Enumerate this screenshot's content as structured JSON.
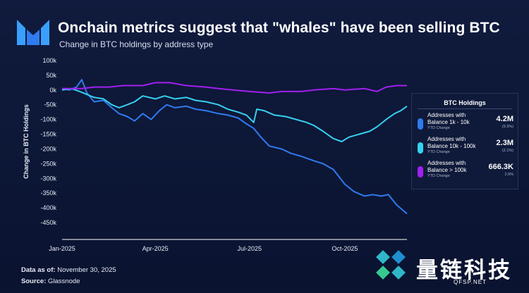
{
  "header": {
    "title": "Onchain metrics suggest that \"whales\" have been selling BTC",
    "subtitle": "Change in BTC holdings by address type"
  },
  "legend": {
    "title": "BTC Holdings",
    "items": [
      {
        "label": "Addresses with Balance 1k - 10k",
        "sub": "YTD Change",
        "value": "4.2M",
        "pct": "(9.3%)",
        "color": "#2f7bf0"
      },
      {
        "label": "Addresses with Balance 10k - 100k",
        "sub": "YTD Change",
        "value": "2.3M",
        "pct": "(2.1%)",
        "color": "#36d0f0"
      },
      {
        "label": "Addresses with Balance > 100k",
        "sub": "YTD Change",
        "value": "666.3K",
        "pct": "2.9%",
        "color": "#a020f0"
      }
    ]
  },
  "footer": {
    "data_as_of_label": "Data as of:",
    "data_as_of_value": "November 30, 2025",
    "source_label": "Source:",
    "source_value": "Glassnode"
  },
  "watermark": {
    "text": "量链科技",
    "url": "QFSP.NET"
  },
  "chart_data": {
    "type": "line",
    "title": "Onchain metrics suggest that \"whales\" have been selling BTC",
    "subtitle": "Change in BTC holdings by address type",
    "ylabel": "Change in BTC Holdings",
    "xlabel": "",
    "ylim": [
      -450000,
      100000
    ],
    "yticks": [
      100000,
      50000,
      0,
      -50000,
      -100000,
      -150000,
      -200000,
      -250000,
      -300000,
      -350000,
      -400000,
      -450000
    ],
    "ytick_labels": [
      "100k",
      "50k",
      "0k",
      "-50k",
      "-100k",
      "-150k",
      "-200k",
      "-250k",
      "-300k",
      "-350k",
      "-400k",
      "-450k"
    ],
    "xlim": [
      "2025-01-01",
      "2025-11-30"
    ],
    "xticks": [
      "2025-01-01",
      "2025-04-01",
      "2025-07-01",
      "2025-10-01"
    ],
    "xtick_labels": [
      "Jan-2025",
      "Apr-2025",
      "Jul-2025",
      "Oct-2025"
    ],
    "grid": false,
    "legend_position": "right",
    "series": [
      {
        "name": "Addresses with Balance 1k - 10k",
        "color": "#2f7bf0",
        "points": [
          [
            "2025-01-01",
            5000
          ],
          [
            "2025-01-08",
            0
          ],
          [
            "2025-01-15",
            10000
          ],
          [
            "2025-01-20",
            35000
          ],
          [
            "2025-01-25",
            -10000
          ],
          [
            "2025-02-01",
            -40000
          ],
          [
            "2025-02-10",
            -35000
          ],
          [
            "2025-02-18",
            -60000
          ],
          [
            "2025-02-25",
            -80000
          ],
          [
            "2025-03-05",
            -90000
          ],
          [
            "2025-03-12",
            -105000
          ],
          [
            "2025-03-20",
            -80000
          ],
          [
            "2025-03-28",
            -100000
          ],
          [
            "2025-04-05",
            -70000
          ],
          [
            "2025-04-12",
            -50000
          ],
          [
            "2025-04-20",
            -60000
          ],
          [
            "2025-05-01",
            -55000
          ],
          [
            "2025-05-10",
            -65000
          ],
          [
            "2025-05-20",
            -70000
          ],
          [
            "2025-06-01",
            -80000
          ],
          [
            "2025-06-10",
            -85000
          ],
          [
            "2025-06-20",
            -95000
          ],
          [
            "2025-06-28",
            -115000
          ],
          [
            "2025-07-05",
            -130000
          ],
          [
            "2025-07-12",
            -160000
          ],
          [
            "2025-07-20",
            -190000
          ],
          [
            "2025-08-01",
            -200000
          ],
          [
            "2025-08-10",
            -215000
          ],
          [
            "2025-08-20",
            -225000
          ],
          [
            "2025-09-01",
            -240000
          ],
          [
            "2025-09-10",
            -250000
          ],
          [
            "2025-09-20",
            -270000
          ],
          [
            "2025-10-01",
            -320000
          ],
          [
            "2025-10-10",
            -345000
          ],
          [
            "2025-10-20",
            -360000
          ],
          [
            "2025-10-28",
            -355000
          ],
          [
            "2025-11-05",
            -360000
          ],
          [
            "2025-11-12",
            -355000
          ],
          [
            "2025-11-20",
            -390000
          ],
          [
            "2025-11-30",
            -420000
          ]
        ]
      },
      {
        "name": "Addresses with Balance 10k - 100k",
        "color": "#36d0f0",
        "points": [
          [
            "2025-01-01",
            0
          ],
          [
            "2025-01-10",
            5000
          ],
          [
            "2025-01-18",
            -5000
          ],
          [
            "2025-01-25",
            -15000
          ],
          [
            "2025-02-01",
            -25000
          ],
          [
            "2025-02-10",
            -30000
          ],
          [
            "2025-02-18",
            -50000
          ],
          [
            "2025-02-25",
            -60000
          ],
          [
            "2025-03-05",
            -50000
          ],
          [
            "2025-03-12",
            -40000
          ],
          [
            "2025-03-20",
            -20000
          ],
          [
            "2025-04-01",
            -30000
          ],
          [
            "2025-04-10",
            -20000
          ],
          [
            "2025-04-20",
            -30000
          ],
          [
            "2025-05-01",
            -25000
          ],
          [
            "2025-05-10",
            -35000
          ],
          [
            "2025-05-20",
            -40000
          ],
          [
            "2025-06-01",
            -50000
          ],
          [
            "2025-06-10",
            -65000
          ],
          [
            "2025-06-20",
            -75000
          ],
          [
            "2025-06-28",
            -85000
          ],
          [
            "2025-07-05",
            -110000
          ],
          [
            "2025-07-08",
            -65000
          ],
          [
            "2025-07-15",
            -70000
          ],
          [
            "2025-07-25",
            -85000
          ],
          [
            "2025-08-05",
            -90000
          ],
          [
            "2025-08-15",
            -100000
          ],
          [
            "2025-08-25",
            -110000
          ],
          [
            "2025-09-01",
            -120000
          ],
          [
            "2025-09-10",
            -140000
          ],
          [
            "2025-09-20",
            -165000
          ],
          [
            "2025-09-28",
            -175000
          ],
          [
            "2025-10-05",
            -160000
          ],
          [
            "2025-10-15",
            -150000
          ],
          [
            "2025-10-25",
            -140000
          ],
          [
            "2025-11-01",
            -125000
          ],
          [
            "2025-11-10",
            -100000
          ],
          [
            "2025-11-18",
            -80000
          ],
          [
            "2025-11-24",
            -70000
          ],
          [
            "2025-11-30",
            -55000
          ]
        ]
      },
      {
        "name": "Addresses with Balance > 100k",
        "color": "#a020f0",
        "points": [
          [
            "2025-01-01",
            5000
          ],
          [
            "2025-01-20",
            5000
          ],
          [
            "2025-02-01",
            10000
          ],
          [
            "2025-02-15",
            10000
          ],
          [
            "2025-03-01",
            15000
          ],
          [
            "2025-03-20",
            15000
          ],
          [
            "2025-04-01",
            25000
          ],
          [
            "2025-04-15",
            25000
          ],
          [
            "2025-05-01",
            15000
          ],
          [
            "2025-05-20",
            10000
          ],
          [
            "2025-06-01",
            5000
          ],
          [
            "2025-06-15",
            0
          ],
          [
            "2025-07-01",
            -5000
          ],
          [
            "2025-07-20",
            -10000
          ],
          [
            "2025-08-01",
            -5000
          ],
          [
            "2025-08-20",
            -5000
          ],
          [
            "2025-09-01",
            0
          ],
          [
            "2025-09-20",
            5000
          ],
          [
            "2025-10-01",
            0
          ],
          [
            "2025-10-20",
            5000
          ],
          [
            "2025-11-01",
            -5000
          ],
          [
            "2025-11-10",
            10000
          ],
          [
            "2025-11-20",
            15000
          ],
          [
            "2025-11-30",
            15000
          ]
        ]
      }
    ]
  }
}
